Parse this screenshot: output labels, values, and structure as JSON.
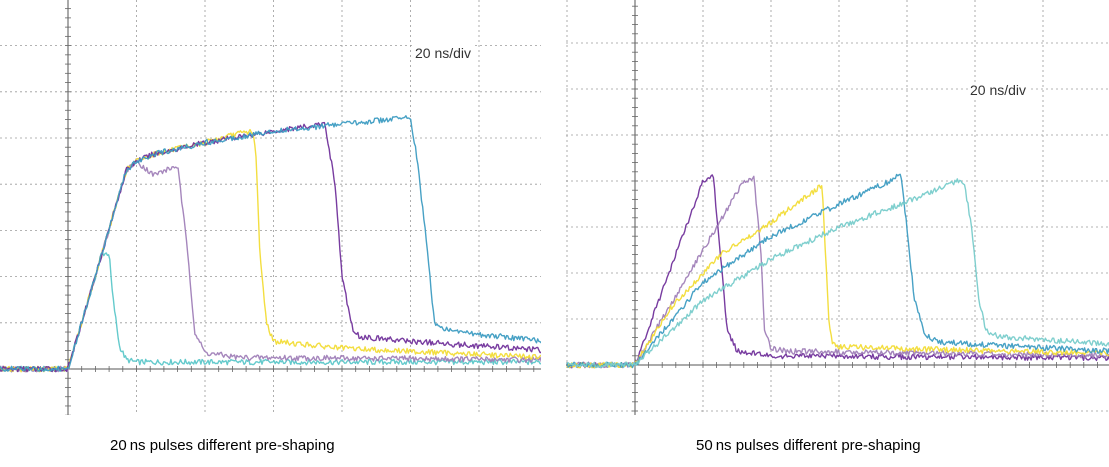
{
  "chart_data": [
    {
      "type": "line",
      "panel": "left",
      "timebase_label": "20 ns/div",
      "caption": "20 ns pulses different pre-shaping",
      "x_unit": "ns",
      "y_unit": "div",
      "xlim": [
        -20,
        140
      ],
      "ylim": [
        -1,
        8
      ],
      "grid": true,
      "series": [
        {
          "color": "#5cc7c9",
          "x": [
            -20,
            0,
            10,
            12,
            13,
            15,
            17,
            20,
            140
          ],
          "y": [
            0,
            0,
            2.5,
            2.5,
            1.6,
            0.5,
            0.2,
            0.15,
            0.15
          ]
        },
        {
          "color": "#a07fb8",
          "x": [
            -20,
            0,
            17,
            20,
            25,
            32,
            35,
            37,
            40,
            50,
            140
          ],
          "y": [
            0,
            0,
            4.3,
            4.5,
            4.2,
            4.4,
            2.5,
            0.8,
            0.35,
            0.25,
            0.2
          ]
        },
        {
          "color": "#f2dc36",
          "x": [
            -20,
            0,
            17,
            20,
            25,
            40,
            50,
            54,
            55,
            56,
            58,
            60,
            80,
            140
          ],
          "y": [
            0,
            0,
            4.3,
            4.5,
            4.65,
            4.9,
            5.1,
            5.15,
            4.5,
            2.5,
            1.0,
            0.6,
            0.45,
            0.25
          ]
        },
        {
          "color": "#71329b",
          "x": [
            -20,
            0,
            17,
            20,
            25,
            40,
            60,
            75,
            78,
            80,
            83,
            85,
            100,
            140
          ],
          "y": [
            0,
            0,
            4.3,
            4.5,
            4.65,
            4.9,
            5.15,
            5.3,
            4.0,
            2.0,
            0.9,
            0.7,
            0.6,
            0.4
          ]
        },
        {
          "color": "#3d9cc2",
          "x": [
            -20,
            0,
            17,
            20,
            25,
            40,
            60,
            80,
            100,
            102,
            105,
            107,
            110,
            120,
            140
          ],
          "y": [
            0,
            0,
            4.3,
            4.5,
            4.65,
            4.9,
            5.15,
            5.3,
            5.45,
            4.5,
            2.5,
            1.0,
            0.85,
            0.75,
            0.6
          ]
        }
      ]
    },
    {
      "type": "line",
      "panel": "right",
      "timebase_label": "20 ns/div",
      "caption": "50 ns pulses different pre-shaping",
      "x_unit": "ns",
      "y_unit": "div",
      "xlim": [
        -20,
        140
      ],
      "ylim": [
        -1,
        8
      ],
      "grid": true,
      "series": [
        {
          "color": "#71329b",
          "x": [
            -20,
            0,
            20,
            23,
            25,
            27,
            30,
            40,
            140
          ],
          "y": [
            0,
            0,
            4.0,
            4.1,
            2.5,
            0.8,
            0.3,
            0.2,
            0.15
          ]
        },
        {
          "color": "#a07fb8",
          "x": [
            -20,
            0,
            32,
            35,
            37,
            38,
            40,
            45,
            140
          ],
          "y": [
            0,
            0,
            4.0,
            4.05,
            2.5,
            0.8,
            0.35,
            0.3,
            0.2
          ]
        },
        {
          "color": "#f2dc36",
          "x": [
            -20,
            0,
            10,
            25,
            40,
            53,
            55,
            56,
            57,
            58,
            60,
            80,
            140
          ],
          "y": [
            0,
            0,
            1.2,
            2.4,
            3.1,
            3.8,
            3.9,
            2.5,
            1.0,
            0.45,
            0.4,
            0.35,
            0.25
          ]
        },
        {
          "color": "#3d9cc2",
          "x": [
            -20,
            0,
            20,
            40,
            60,
            75,
            78,
            80,
            82,
            85,
            88,
            90,
            100,
            140
          ],
          "y": [
            0,
            0,
            1.8,
            2.8,
            3.5,
            4.0,
            4.2,
            3.0,
            1.5,
            0.7,
            0.55,
            0.5,
            0.45,
            0.3
          ]
        },
        {
          "color": "#78cccb",
          "x": [
            -20,
            0,
            20,
            40,
            60,
            80,
            95,
            97,
            99,
            101,
            103,
            105,
            110,
            120,
            140
          ],
          "y": [
            0,
            0,
            1.4,
            2.3,
            3.0,
            3.55,
            4.0,
            3.9,
            3.0,
            1.5,
            0.8,
            0.65,
            0.6,
            0.55,
            0.45
          ]
        }
      ]
    }
  ]
}
